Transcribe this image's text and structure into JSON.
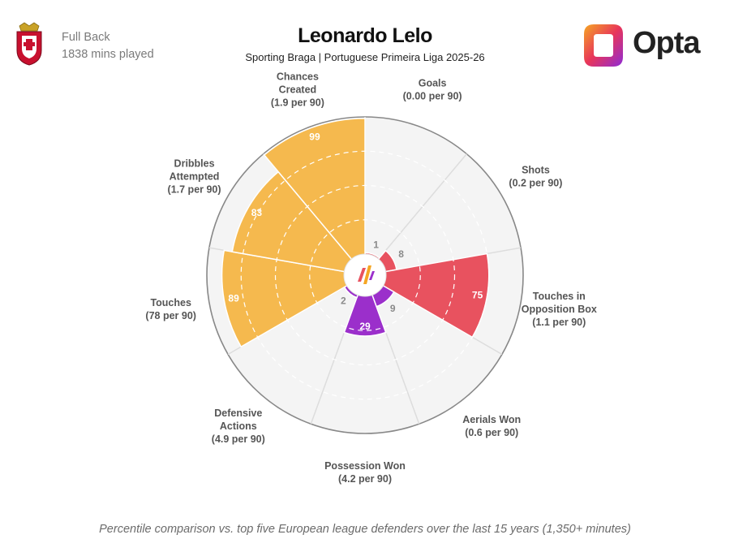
{
  "header": {
    "position": "Full Back",
    "minutes": "1838 mins played",
    "title": "Leonardo Lelo",
    "subtitle": "Sporting Braga | Portuguese Primeira Liga 2025-26",
    "brand": "Opta",
    "crest_icon": "sporting-braga-crest-icon",
    "brand_icon": "opta-logo-icon"
  },
  "footnote": "Percentile comparison vs. top five European league defenders over the last 15 years (1,350+ minutes)",
  "colors": {
    "attacking": "#F5B94E",
    "shooting": "#E8525F",
    "defending": "#9B2FCB",
    "ring": "#dddddd",
    "grid_dash": "#ffffff",
    "value_inside": "#ffffff",
    "value_outside": "#8a8a8a"
  },
  "chart_data": {
    "type": "pie",
    "subtype": "polar-area percentile radar",
    "scale": [
      0,
      100
    ],
    "categories": [
      {
        "name": "Goals",
        "rate": "(0.00 per 90)",
        "value": 1,
        "group": "shooting"
      },
      {
        "name": "Shots",
        "rate": "(0.2 per 90)",
        "value": 8,
        "group": "shooting"
      },
      {
        "name": "Touches in Opposition Box",
        "rate": "(1.1 per 90)",
        "value": 75,
        "group": "shooting"
      },
      {
        "name": "Aerials Won",
        "rate": "(0.6 per 90)",
        "value": 9,
        "group": "defending"
      },
      {
        "name": "Possession Won",
        "rate": "(4.2 per 90)",
        "value": 29,
        "group": "defending"
      },
      {
        "name": "Defensive Actions",
        "rate": "(4.9 per 90)",
        "value": 2,
        "group": "defending"
      },
      {
        "name": "Touches",
        "rate": "(78 per 90)",
        "value": 89,
        "group": "attacking"
      },
      {
        "name": "Dribbles Attempted",
        "rate": "(1.7 per 90)",
        "value": 83,
        "group": "attacking"
      },
      {
        "name": "Chances Created",
        "rate": "(1.9 per 90)",
        "value": 99,
        "group": "attacking"
      }
    ]
  }
}
